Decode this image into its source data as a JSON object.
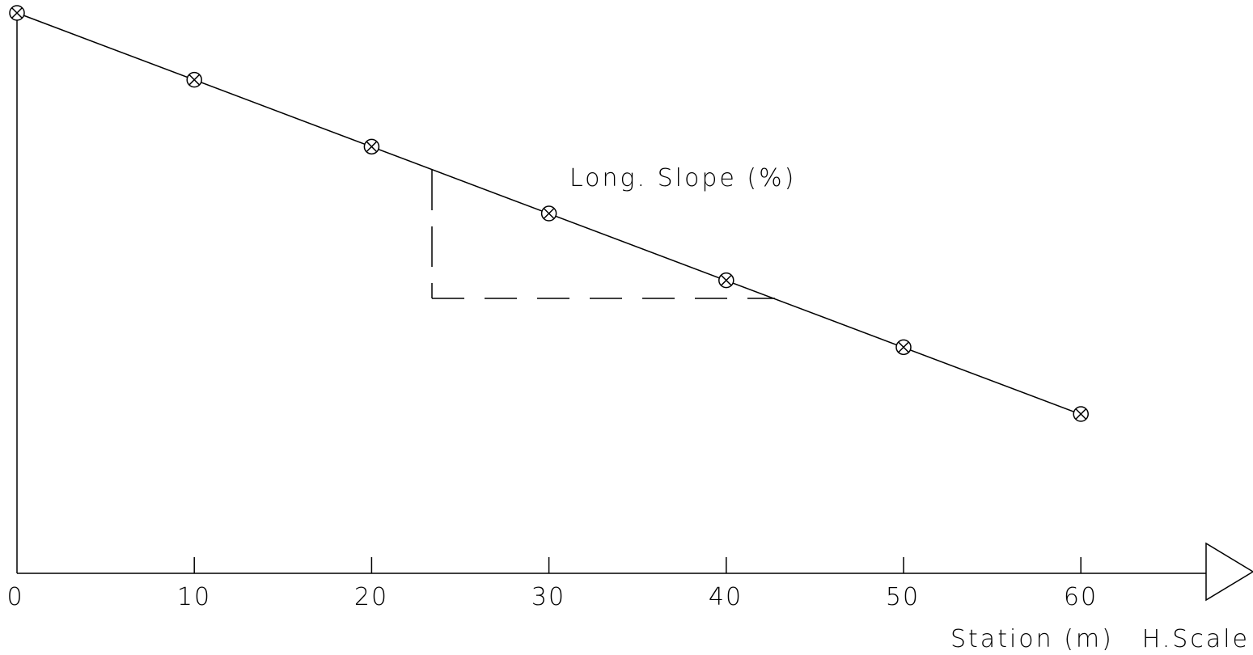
{
  "profile": {
    "stations": [
      0,
      10,
      20,
      30,
      40,
      50,
      60
    ],
    "x_tick_labels": [
      "0",
      "10",
      "20",
      "30",
      "40",
      "50",
      "60"
    ],
    "x_axis_title": "Station (m)",
    "x_axis_scale_label": "H.Scale",
    "slope_annotation": "Long. Slope (%)",
    "line_color": "#000000",
    "marker": "circled-x"
  }
}
